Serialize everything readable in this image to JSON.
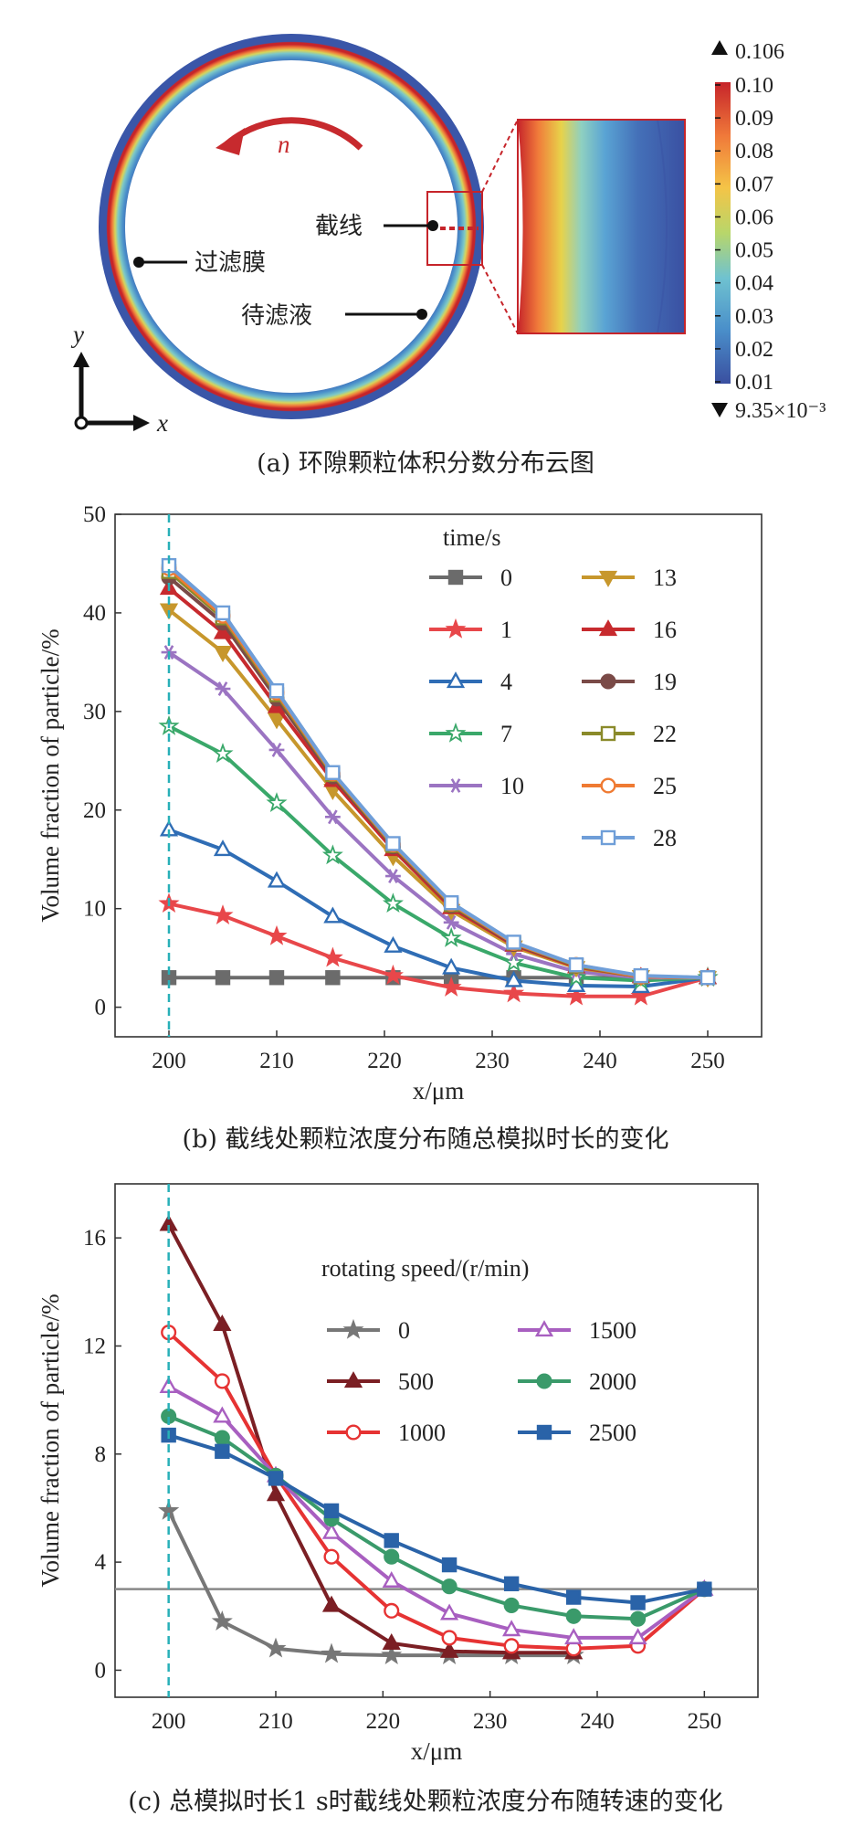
{
  "panel_a": {
    "caption": "(a) 环隙颗粒体积分数分布云图",
    "rotation_label": "n",
    "labels": {
      "jiexian": "截线",
      "membrane": "过滤膜",
      "liquid": "待滤液"
    },
    "axis_y": "y",
    "axis_x": "x",
    "colorbar": {
      "max_label": "0.106",
      "min_label": "9.35×10⁻³",
      "ticks": [
        "0.10",
        "0.09",
        "0.08",
        "0.07",
        "0.06",
        "0.05",
        "0.04",
        "0.03",
        "0.02",
        "0.01"
      ],
      "colors": [
        "#3a4fa0",
        "#4a8fca",
        "#6fc2d0",
        "#b8d66a",
        "#f4c447",
        "#f07a3a",
        "#c6242a"
      ]
    }
  },
  "chart_data": [
    {
      "type": "line",
      "xlabel": "x/μm",
      "ylabel": "Volume fraction of particle/%",
      "xlim": [
        195,
        255
      ],
      "ylim": [
        -3,
        50
      ],
      "xticks": [
        "200",
        "210",
        "220",
        "230",
        "240",
        "250"
      ],
      "yticks": [
        "0",
        "10",
        "20",
        "30",
        "40",
        "50"
      ],
      "legend_title": "time/s",
      "caption": "(b) 截线处颗粒浓度分布随总模拟时长的变化",
      "ref_vline": 200,
      "x": [
        200,
        205,
        210,
        215.2,
        220.8,
        226.2,
        232,
        237.8,
        243.8,
        250
      ],
      "series": [
        {
          "name": "0",
          "color": "#6b6b6b",
          "marker": "square",
          "values": [
            3,
            3,
            3,
            3,
            3,
            3,
            3,
            3,
            3,
            3
          ]
        },
        {
          "name": "1",
          "color": "#e8474a",
          "marker": "star",
          "values": [
            10.5,
            9.3,
            7.2,
            5.0,
            3.2,
            2.0,
            1.4,
            1.1,
            1.1,
            3
          ]
        },
        {
          "name": "4",
          "color": "#2f6db5",
          "marker": "triangle-open",
          "values": [
            18,
            16,
            12.8,
            9.2,
            6.2,
            4.0,
            2.7,
            2.2,
            2.1,
            3
          ]
        },
        {
          "name": "7",
          "color": "#3aa86a",
          "marker": "star-open",
          "values": [
            28.5,
            25.7,
            20.7,
            15.4,
            10.5,
            7.0,
            4.5,
            3.0,
            2.7,
            3
          ]
        },
        {
          "name": "10",
          "color": "#9b74c2",
          "marker": "asterisk",
          "values": [
            36,
            32.3,
            26.1,
            19.3,
            13.3,
            8.6,
            5.4,
            3.6,
            3.0,
            3
          ]
        },
        {
          "name": "13",
          "color": "#c7972c",
          "marker": "triangle-down",
          "values": [
            40.3,
            36.0,
            29.2,
            22.0,
            15.3,
            9.8,
            6.1,
            4.0,
            3.1,
            3
          ]
        },
        {
          "name": "16",
          "color": "#c72a2e",
          "marker": "triangle",
          "values": [
            42.5,
            38.0,
            30.5,
            23.0,
            16.0,
            10.1,
            6.3,
            4.1,
            3.1,
            3
          ]
        },
        {
          "name": "19",
          "color": "#7a4a47",
          "marker": "circle",
          "values": [
            43.6,
            39.0,
            31.3,
            23.4,
            16.3,
            10.3,
            6.4,
            4.2,
            3.1,
            3
          ]
        },
        {
          "name": "22",
          "color": "#8a8a2a",
          "marker": "square-open",
          "values": [
            44.2,
            39.5,
            31.7,
            23.6,
            16.4,
            10.4,
            6.5,
            4.2,
            3.1,
            3
          ]
        },
        {
          "name": "25",
          "color": "#ef7a32",
          "marker": "circle-open",
          "values": [
            44.5,
            39.7,
            31.9,
            23.7,
            16.5,
            10.5,
            6.5,
            4.3,
            3.1,
            3
          ]
        },
        {
          "name": "28",
          "color": "#6f9ed8",
          "marker": "square-open",
          "values": [
            44.8,
            40.0,
            32.1,
            23.8,
            16.6,
            10.6,
            6.6,
            4.3,
            3.2,
            3
          ]
        }
      ]
    },
    {
      "type": "line",
      "xlabel": "x/μm",
      "ylabel": "Volume fraction of particle/%",
      "xlim": [
        195,
        255
      ],
      "ylim": [
        -1,
        18
      ],
      "xticks": [
        "200",
        "210",
        "220",
        "230",
        "240",
        "250"
      ],
      "yticks": [
        "0",
        "4",
        "8",
        "12",
        "16"
      ],
      "legend_title": "rotating speed/(r/min)",
      "caption": "(c) 总模拟时长1 s时截线处颗粒浓度分布随转速的变化",
      "ref_vline": 200,
      "ref_hline": 3,
      "x": [
        200,
        205,
        210,
        215.2,
        220.8,
        226.2,
        232,
        237.8,
        243.8,
        250
      ],
      "series": [
        {
          "name": "0",
          "color": "#777777",
          "marker": "star",
          "values": [
            5.9,
            1.8,
            0.8,
            0.6,
            0.55,
            0.55,
            0.55,
            0.55,
            null,
            null
          ]
        },
        {
          "name": "500",
          "color": "#7b1f24",
          "marker": "triangle",
          "values": [
            16.5,
            12.8,
            6.5,
            2.4,
            1.0,
            0.7,
            0.65,
            0.65,
            null,
            null
          ]
        },
        {
          "name": "1000",
          "color": "#e63333",
          "marker": "circle-open",
          "values": [
            12.5,
            10.7,
            7.2,
            4.2,
            2.2,
            1.2,
            0.9,
            0.8,
            0.9,
            3
          ]
        },
        {
          "name": "1500",
          "color": "#a85fc0",
          "marker": "triangle-open",
          "values": [
            10.5,
            9.4,
            7.2,
            5.1,
            3.3,
            2.1,
            1.5,
            1.2,
            1.2,
            3
          ]
        },
        {
          "name": "2000",
          "color": "#3a9a6a",
          "marker": "circle",
          "values": [
            9.4,
            8.6,
            7.2,
            5.6,
            4.2,
            3.1,
            2.4,
            2.0,
            1.9,
            3
          ]
        },
        {
          "name": "2500",
          "color": "#2a63a8",
          "marker": "square",
          "values": [
            8.7,
            8.1,
            7.1,
            5.9,
            4.8,
            3.9,
            3.2,
            2.7,
            2.5,
            3
          ]
        }
      ]
    }
  ]
}
